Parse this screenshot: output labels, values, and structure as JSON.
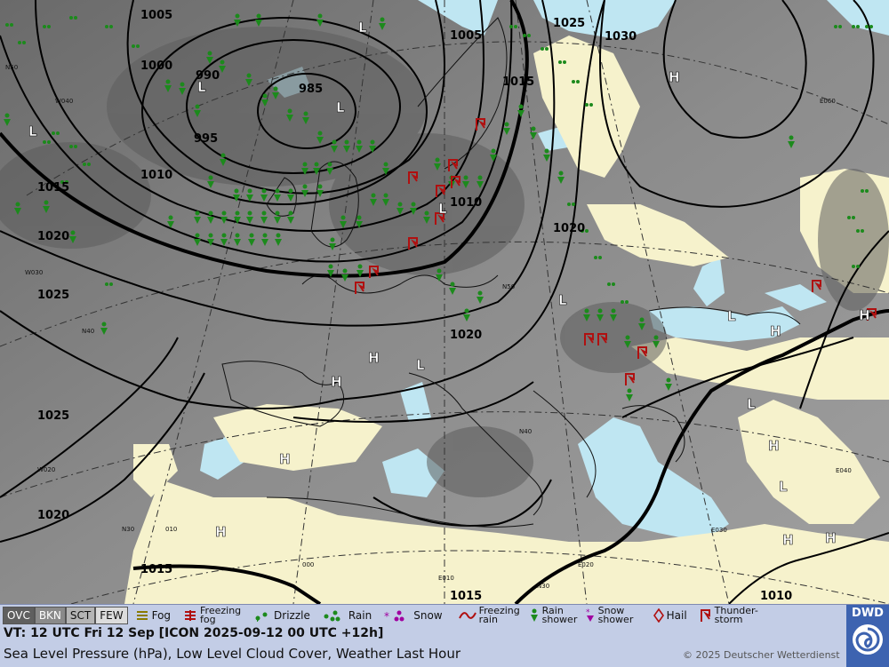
{
  "map": {
    "pressure_labels": [
      "1005",
      "1000",
      "990",
      "985",
      "995",
      "1010",
      "1015",
      "1020",
      "1025",
      "1020",
      "1015",
      "1005",
      "1015",
      "1010",
      "1020",
      "1020",
      "1025",
      "1030",
      "1015",
      "1010"
    ],
    "center_labels": [
      "L",
      "L",
      "L",
      "L",
      "L",
      "H",
      "H",
      "L",
      "L",
      "H",
      "H",
      "H",
      "H",
      "L",
      "H",
      "H",
      "H",
      "H",
      "L",
      "L"
    ],
    "grid_labels": [
      "W040",
      "W030",
      "W020",
      "E060",
      "E040",
      "E030",
      "E020",
      "E010",
      "N30",
      "N40",
      "N50",
      "N30",
      "010",
      "000",
      "N50",
      "N40"
    ]
  },
  "legend": {
    "cloud": [
      "OVC",
      "BKN",
      "SCT",
      "FEW"
    ],
    "weather": [
      {
        "icon": "fog-icon",
        "label": "Fog"
      },
      {
        "icon": "freezing-fog-icon",
        "label": "Freezing fog"
      },
      {
        "icon": "drizzle-icon",
        "label": "Drizzle"
      },
      {
        "icon": "rain-icon",
        "label": "Rain"
      },
      {
        "icon": "snow-icon",
        "label": "Snow"
      },
      {
        "icon": "freezing-rain-icon",
        "label": "Freezing rain"
      },
      {
        "icon": "rain-shower-icon",
        "label": "Rain shower"
      },
      {
        "icon": "snow-shower-icon",
        "label": "Snow shower"
      },
      {
        "icon": "hail-icon",
        "label": "Hail"
      },
      {
        "icon": "thunderstorm-icon",
        "label": "Thunder-storm"
      }
    ],
    "info_line1": "VT: 12 UTC Fri  12 Sep [ICON 2025-09-12 00 UTC +12h]",
    "info_line2": "Sea Level Pressure (hPa), Low Level Cloud Cover, Weather Last Hour",
    "copyright": "© 2025 Deutscher Wetterdienst",
    "logo_text": "DWD"
  },
  "colors": {
    "land_clear": "#f6f2cc",
    "sea_clear": "#bfe6f2",
    "cloud_dark": "#6e6e6e",
    "rain": "#1c8a1c",
    "thunder": "#b01010",
    "legend_bg": "#c3cde6"
  }
}
